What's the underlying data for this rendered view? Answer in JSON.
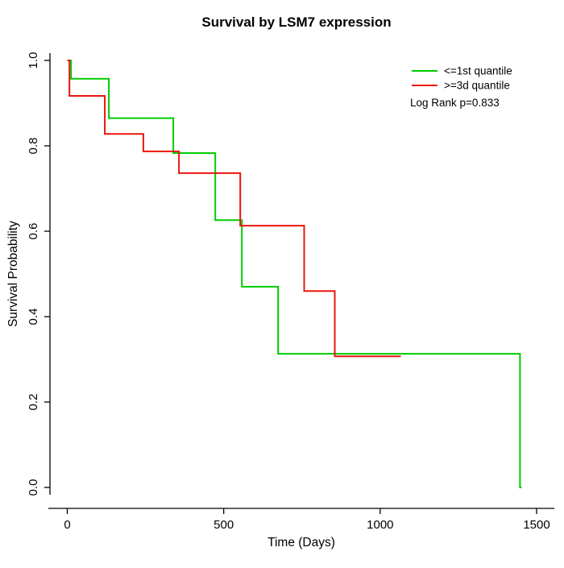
{
  "chart_data": {
    "type": "line",
    "subtype": "kaplan-meier-survival-step",
    "title": "Survival by LSM7 expression",
    "xlabel": "Time (Days)",
    "ylabel": "Survival Probability",
    "annotation": "Log Rank p=0.833",
    "xlim": [
      0,
      1500
    ],
    "ylim": [
      0.0,
      1.0
    ],
    "x_ticks": [
      0,
      500,
      1000,
      1500
    ],
    "x_tick_labels": [
      "0",
      "500",
      "1000",
      "1500"
    ],
    "y_ticks": [
      0.0,
      0.2,
      0.4,
      0.6,
      0.8,
      1.0
    ],
    "y_tick_labels": [
      "0.0",
      "0.2",
      "0.4",
      "0.6",
      "0.8",
      "1.0"
    ],
    "grid": false,
    "legend_position": "top-right",
    "series": [
      {
        "name": "<=1st quantile",
        "color": "#00cc00",
        "points": [
          [
            0,
            1.0
          ],
          [
            12,
            1.0
          ],
          [
            12,
            0.957
          ],
          [
            133,
            0.957
          ],
          [
            133,
            0.865
          ],
          [
            339,
            0.865
          ],
          [
            339,
            0.783
          ],
          [
            473,
            0.783
          ],
          [
            473,
            0.626
          ],
          [
            558,
            0.626
          ],
          [
            558,
            0.47
          ],
          [
            674,
            0.47
          ],
          [
            674,
            0.313
          ],
          [
            1447,
            0.313
          ],
          [
            1447,
            0.0
          ],
          [
            1452,
            0.0
          ]
        ]
      },
      {
        "name": ">=3d quantile",
        "color": "#e8150d",
        "points": [
          [
            0,
            1.0
          ],
          [
            7,
            1.0
          ],
          [
            7,
            0.917
          ],
          [
            120,
            0.917
          ],
          [
            120,
            0.828
          ],
          [
            243,
            0.828
          ],
          [
            243,
            0.787
          ],
          [
            357,
            0.787
          ],
          [
            357,
            0.736
          ],
          [
            553,
            0.736
          ],
          [
            553,
            0.613
          ],
          [
            757,
            0.613
          ],
          [
            757,
            0.46
          ],
          [
            855,
            0.46
          ],
          [
            855,
            0.307
          ],
          [
            1066,
            0.307
          ]
        ]
      }
    ]
  }
}
